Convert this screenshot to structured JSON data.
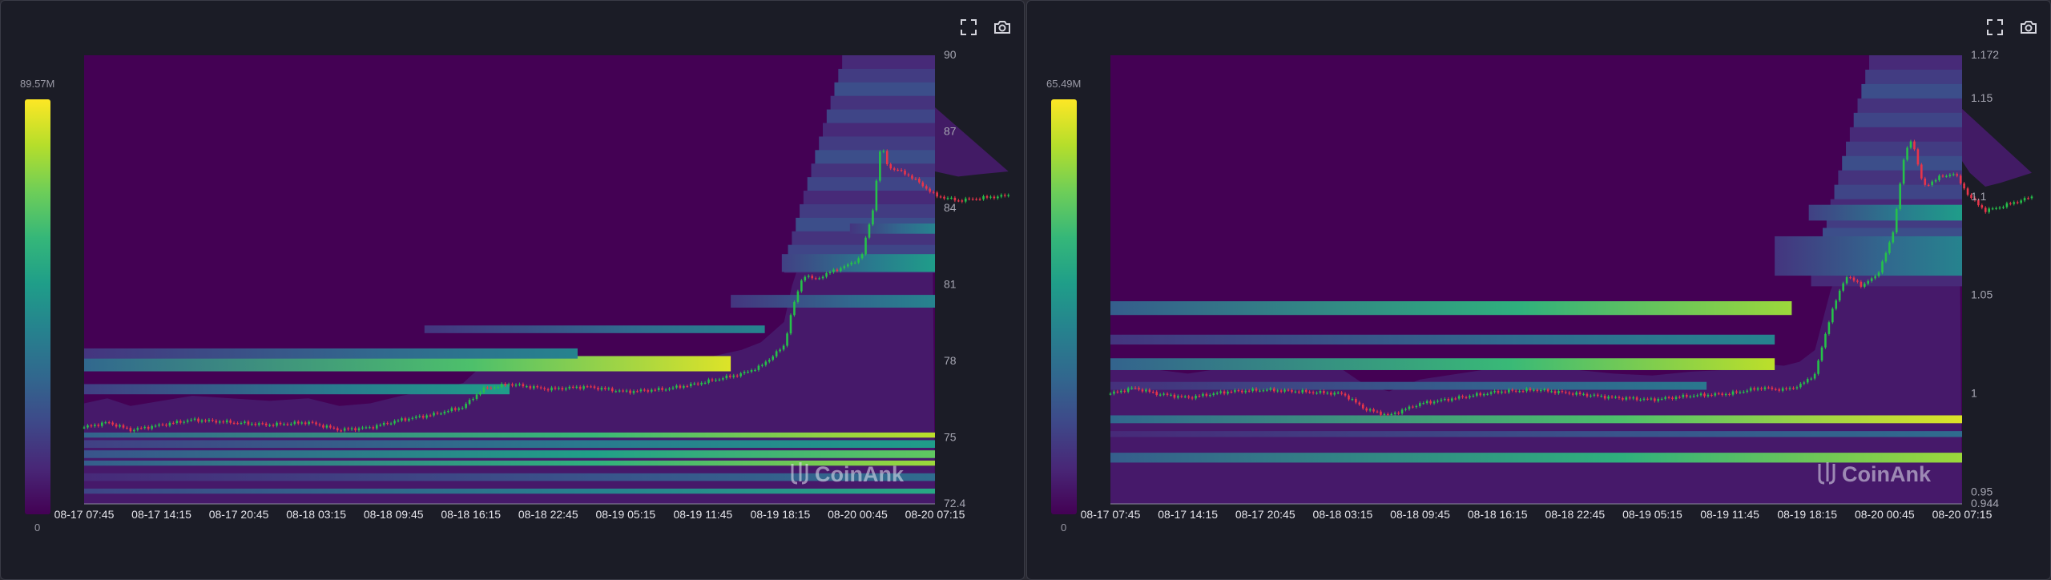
{
  "colors": {
    "panel_bg": "#1b1c26",
    "heat_min": "#440154",
    "heat_max": "#fde725",
    "candle_up": "#26c14a",
    "candle_down": "#e8354a"
  },
  "toolbar": {
    "fullscreen_icon": "fullscreen-icon",
    "camera_icon": "camera-icon"
  },
  "watermark": "CoinAnk",
  "chart_data": [
    {
      "type": "heatmap",
      "colorbar": {
        "max_label": "89.57M",
        "min_label": "0"
      },
      "x_ticks": [
        "08-17 07:45",
        "08-17 14:15",
        "08-17 20:45",
        "08-18 03:15",
        "08-18 09:45",
        "08-18 16:15",
        "08-18 22:45",
        "08-19 05:15",
        "08-19 11:45",
        "08-19 18:15",
        "08-20 00:45",
        "08-20 07:15"
      ],
      "y_ticks": [
        90,
        87,
        84,
        81,
        78,
        75,
        72.4
      ],
      "y_tick_labels": [
        "90",
        "87",
        "84",
        "81",
        "78",
        "75",
        "72.4"
      ],
      "ylim": [
        72.4,
        90
      ],
      "price_series": [
        [
          0,
          75.4
        ],
        [
          0.3,
          75.6
        ],
        [
          0.6,
          75.3
        ],
        [
          1.0,
          75.5
        ],
        [
          1.4,
          75.7
        ],
        [
          1.9,
          75.6
        ],
        [
          2.4,
          75.5
        ],
        [
          2.9,
          75.6
        ],
        [
          3.3,
          75.3
        ],
        [
          3.7,
          75.4
        ],
        [
          4.1,
          75.7
        ],
        [
          4.5,
          75.9
        ],
        [
          4.9,
          76.2
        ],
        [
          5.15,
          76.9
        ],
        [
          5.5,
          77.1
        ],
        [
          6.0,
          76.9
        ],
        [
          6.5,
          77.0
        ],
        [
          7.0,
          76.8
        ],
        [
          7.5,
          76.9
        ],
        [
          7.9,
          77.1
        ],
        [
          8.2,
          77.3
        ],
        [
          8.5,
          77.5
        ],
        [
          8.75,
          77.8
        ],
        [
          8.9,
          78.2
        ],
        [
          9.05,
          78.6
        ],
        [
          9.15,
          80.0
        ],
        [
          9.3,
          81.4
        ],
        [
          9.45,
          81.2
        ],
        [
          9.65,
          81.5
        ],
        [
          9.9,
          81.8
        ],
        [
          10.05,
          82.1
        ],
        [
          10.2,
          84.0
        ],
        [
          10.3,
          86.5
        ],
        [
          10.4,
          85.6
        ],
        [
          10.6,
          85.4
        ],
        [
          10.8,
          85.0
        ],
        [
          11.0,
          84.5
        ],
        [
          11.3,
          84.3
        ],
        [
          11.6,
          84.4
        ],
        [
          11.95,
          84.5
        ]
      ],
      "heat_bands": [
        [
          75.0,
          75.2,
          0.0,
          1.0,
          0.9
        ],
        [
          74.6,
          74.9,
          0.0,
          1.0,
          0.55
        ],
        [
          74.2,
          74.5,
          0.0,
          1.0,
          0.75
        ],
        [
          73.9,
          74.1,
          0.0,
          1.0,
          0.85
        ],
        [
          73.3,
          73.6,
          0.0,
          1.0,
          0.35
        ],
        [
          72.8,
          73.0,
          0.0,
          1.0,
          0.6
        ],
        [
          77.6,
          78.2,
          0.0,
          0.76,
          0.95
        ],
        [
          78.1,
          78.5,
          0.0,
          0.58,
          0.45
        ],
        [
          76.7,
          77.1,
          0.0,
          0.5,
          0.55
        ],
        [
          79.1,
          79.4,
          0.4,
          0.8,
          0.45
        ],
        [
          80.1,
          80.6,
          0.76,
          1.0,
          0.45
        ],
        [
          81.5,
          82.2,
          0.82,
          1.0,
          0.55
        ],
        [
          83.0,
          83.4,
          0.9,
          1.0,
          0.45
        ]
      ]
    },
    {
      "type": "heatmap",
      "colorbar": {
        "max_label": "65.49M",
        "min_label": "0"
      },
      "x_ticks": [
        "08-17 07:45",
        "08-17 14:15",
        "08-17 20:45",
        "08-18 03:15",
        "08-18 09:45",
        "08-18 16:15",
        "08-18 22:45",
        "08-19 05:15",
        "08-19 11:45",
        "08-19 18:15",
        "08-20 00:45",
        "08-20 07:15"
      ],
      "y_ticks": [
        1.172,
        1.15,
        1.1,
        1.05,
        1,
        0.95,
        0.944
      ],
      "y_tick_labels": [
        "1.172",
        "1.15",
        "1.1",
        "1.05",
        "1",
        "0.95",
        "0.944"
      ],
      "ylim": [
        0.944,
        1.172
      ],
      "price_series": [
        [
          0,
          1.0
        ],
        [
          0.3,
          1.003
        ],
        [
          0.6,
          1.0
        ],
        [
          1.0,
          0.998
        ],
        [
          1.5,
          1.001
        ],
        [
          2.0,
          1.002
        ],
        [
          2.5,
          1.001
        ],
        [
          3.0,
          1.0
        ],
        [
          3.3,
          0.992
        ],
        [
          3.6,
          0.989
        ],
        [
          4.0,
          0.995
        ],
        [
          4.5,
          0.998
        ],
        [
          5.0,
          1.001
        ],
        [
          5.5,
          1.002
        ],
        [
          6.0,
          1.0
        ],
        [
          6.5,
          0.998
        ],
        [
          7.0,
          0.997
        ],
        [
          7.5,
          0.999
        ],
        [
          8.0,
          1.0
        ],
        [
          8.4,
          1.003
        ],
        [
          8.7,
          1.002
        ],
        [
          8.9,
          1.004
        ],
        [
          9.1,
          1.01
        ],
        [
          9.3,
          1.04
        ],
        [
          9.5,
          1.06
        ],
        [
          9.7,
          1.055
        ],
        [
          9.9,
          1.06
        ],
        [
          10.1,
          1.08
        ],
        [
          10.25,
          1.12
        ],
        [
          10.35,
          1.13
        ],
        [
          10.5,
          1.105
        ],
        [
          10.7,
          1.11
        ],
        [
          10.9,
          1.112
        ],
        [
          11.1,
          1.1
        ],
        [
          11.3,
          1.093
        ],
        [
          11.5,
          1.095
        ],
        [
          11.9,
          1.1
        ]
      ],
      "heat_bands": [
        [
          0.985,
          0.989,
          0.0,
          1.0,
          0.95
        ],
        [
          0.978,
          0.981,
          0.0,
          1.0,
          0.35
        ],
        [
          0.965,
          0.97,
          0.0,
          1.0,
          0.85
        ],
        [
          1.04,
          1.047,
          0.0,
          0.8,
          0.85
        ],
        [
          1.012,
          1.018,
          0.0,
          0.78,
          0.9
        ],
        [
          1.025,
          1.03,
          0.0,
          0.78,
          0.45
        ],
        [
          1.002,
          1.006,
          0.0,
          0.7,
          0.4
        ],
        [
          1.06,
          1.08,
          0.78,
          1.0,
          0.45
        ],
        [
          1.088,
          1.096,
          0.82,
          1.0,
          0.55
        ]
      ]
    }
  ]
}
